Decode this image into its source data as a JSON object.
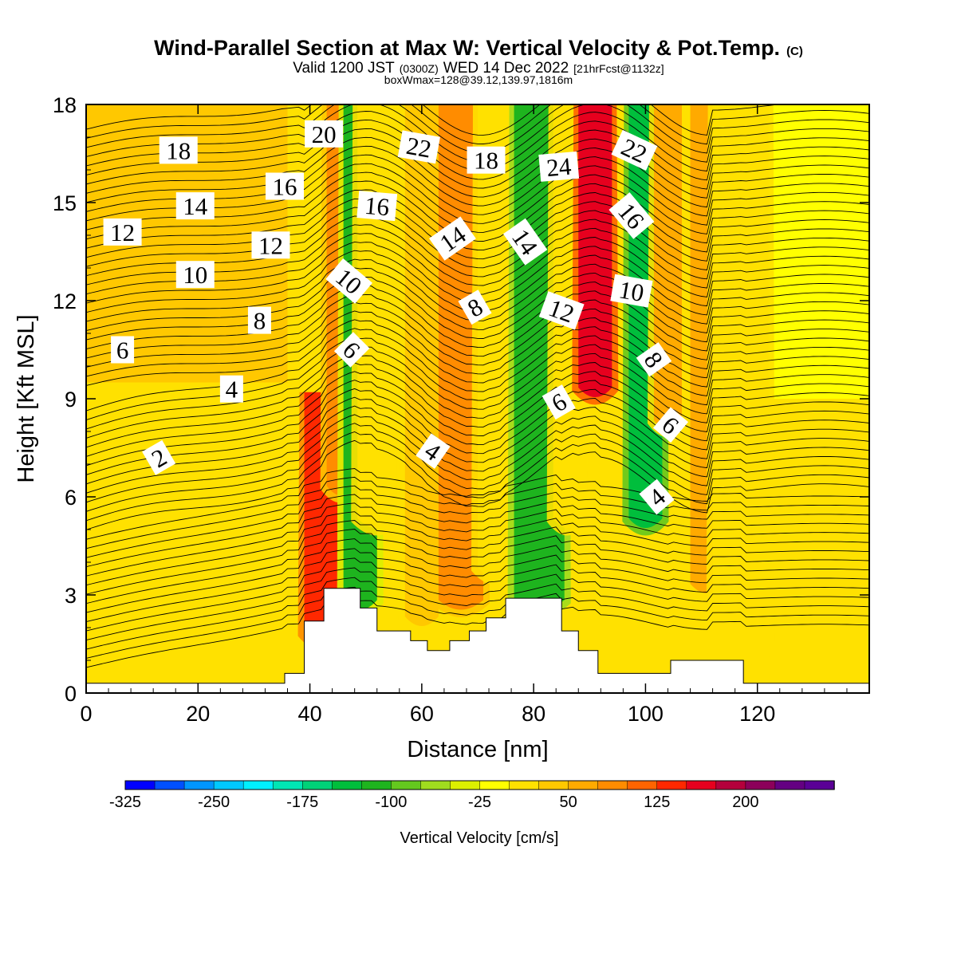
{
  "title": {
    "main": "Wind-Parallel Section at Max W: Vertical Velocity & Pot.Temp.",
    "copyright": "(C)",
    "valid_prefix": "Valid 1200 JST",
    "utc": "(0300Z)",
    "valid_date": "WED 14 Dec 2022",
    "forecast": "[21hrFcst@1132z]",
    "boxinfo": "boxWmax=128@39.12,139.97,1816m"
  },
  "chart_data": {
    "type": "heatmap",
    "xlabel": "Distance [nm]",
    "ylabel": "Height [Kft MSL]",
    "xlim": [
      0,
      140
    ],
    "ylim": [
      0,
      18
    ],
    "xticks": [
      "0",
      "20",
      "40",
      "60",
      "80",
      "100",
      "120"
    ],
    "xtick_values": [
      0,
      20,
      40,
      60,
      80,
      100,
      120
    ],
    "yticks": [
      "0",
      "3",
      "6",
      "9",
      "12",
      "15",
      "18"
    ],
    "ytick_values": [
      0,
      3,
      6,
      9,
      12,
      15,
      18
    ],
    "colorbar": {
      "title": "Vertical Velocity [cm/s]",
      "labels": [
        "-325",
        "-250",
        "-175",
        "-100",
        "-25",
        "50",
        "125",
        "200"
      ],
      "label_values": [
        -325,
        -250,
        -175,
        -100,
        -25,
        50,
        125,
        200
      ],
      "levels_min": -325,
      "level_step": 25,
      "colors": [
        "#0000ff",
        "#0050ff",
        "#0096ff",
        "#00c8ff",
        "#00f0ff",
        "#00e6b4",
        "#00d278",
        "#00be3c",
        "#1eb41e",
        "#64c81e",
        "#a0dc1e",
        "#dcf000",
        "#ffff00",
        "#ffe100",
        "#ffc800",
        "#ffaa00",
        "#ff8c00",
        "#ff6400",
        "#ff2800",
        "#e6001e",
        "#b4003c",
        "#8c005a",
        "#640082",
        "#5a0096"
      ]
    },
    "vertical_velocity_bands": [
      {
        "x": 42,
        "w": 3.0,
        "y0": 1.5,
        "y1": 9.2,
        "value": 140
      },
      {
        "x": 45.5,
        "w": 2.5,
        "y0": 6.0,
        "y1": 18,
        "value": 90
      },
      {
        "x": 49,
        "w": 3.0,
        "y0": 2.5,
        "y1": 18,
        "value": -110
      },
      {
        "x": 52,
        "w": 3.5,
        "y0": 5.0,
        "y1": 18,
        "value": 20
      },
      {
        "x": 60,
        "w": 3.0,
        "y0": 2.0,
        "y1": 18,
        "value": 35
      },
      {
        "x": 67,
        "w": 4.0,
        "y0": 2.5,
        "y1": 18,
        "value": 95
      },
      {
        "x": 73,
        "w": 3.0,
        "y0": 3.5,
        "y1": 18,
        "value": 20
      },
      {
        "x": 81,
        "w": 4.5,
        "y0": 2.5,
        "y1": 18,
        "value": -120
      },
      {
        "x": 86,
        "w": 2.5,
        "y0": 5.0,
        "y1": 18,
        "value": 20
      },
      {
        "x": 91,
        "w": 3.0,
        "y0": 9.0,
        "y1": 18,
        "value": 150
      },
      {
        "x": 100,
        "w": 3.0,
        "y0": 5.0,
        "y1": 18,
        "value": -150
      },
      {
        "x": 104,
        "w": 2.5,
        "y0": 8.0,
        "y1": 18,
        "value": 60
      },
      {
        "x": 111,
        "w": 3.0,
        "y0": 3.0,
        "y1": 18,
        "value": 60
      },
      {
        "x": 117,
        "w": 5.0,
        "y0": 1.0,
        "y1": 18,
        "value": 15
      }
    ],
    "terrain": [
      [
        35.5,
        0.6
      ],
      [
        39,
        2.2
      ],
      [
        42.5,
        3.2
      ],
      [
        49,
        2.6
      ],
      [
        52,
        1.9
      ],
      [
        58,
        1.6
      ],
      [
        61,
        1.3
      ],
      [
        65,
        1.6
      ],
      [
        68.5,
        1.9
      ],
      [
        71.5,
        2.3
      ],
      [
        75,
        2.9
      ],
      [
        85,
        1.9
      ],
      [
        88,
        1.3
      ],
      [
        91.5,
        0.6
      ],
      [
        104.5,
        1.0
      ],
      [
        117.5,
        0.3
      ]
    ],
    "theta_contour_labels": [
      {
        "text": "20",
        "x": 42.5,
        "y": 17.1,
        "angle": 0
      },
      {
        "text": "22",
        "x": 59.5,
        "y": 16.7,
        "angle": 10
      },
      {
        "text": "18",
        "x": 71.5,
        "y": 16.3,
        "angle": 0
      },
      {
        "text": "24",
        "x": 84.5,
        "y": 16.1,
        "angle": -5
      },
      {
        "text": "22",
        "x": 98,
        "y": 16.6,
        "angle": 25
      },
      {
        "text": "18",
        "x": 16.5,
        "y": 16.6,
        "angle": 0
      },
      {
        "text": "16",
        "x": 35.5,
        "y": 15.5,
        "angle": 0
      },
      {
        "text": "16",
        "x": 52,
        "y": 14.9,
        "angle": 5
      },
      {
        "text": "14",
        "x": 19.5,
        "y": 14.9,
        "angle": 0
      },
      {
        "text": "16",
        "x": 97.5,
        "y": 14.6,
        "angle": 50
      },
      {
        "text": "14",
        "x": 65.5,
        "y": 13.9,
        "angle": -35
      },
      {
        "text": "14",
        "x": 78.5,
        "y": 13.8,
        "angle": 55
      },
      {
        "text": "12",
        "x": 6.5,
        "y": 14.1,
        "angle": 0
      },
      {
        "text": "12",
        "x": 33,
        "y": 13.7,
        "angle": 0
      },
      {
        "text": "10",
        "x": 19.5,
        "y": 12.8,
        "angle": 0
      },
      {
        "text": "10",
        "x": 47,
        "y": 12.6,
        "angle": 40
      },
      {
        "text": "10",
        "x": 97.5,
        "y": 12.3,
        "angle": 10
      },
      {
        "text": "8",
        "x": 69.5,
        "y": 11.8,
        "angle": -30
      },
      {
        "text": "12",
        "x": 85,
        "y": 11.7,
        "angle": 20
      },
      {
        "text": "8",
        "x": 31,
        "y": 11.4,
        "angle": 0
      },
      {
        "text": "6",
        "x": 6.5,
        "y": 10.5,
        "angle": 0
      },
      {
        "text": "6",
        "x": 47.5,
        "y": 10.5,
        "angle": 45
      },
      {
        "text": "8",
        "x": 101.5,
        "y": 10.2,
        "angle": 55
      },
      {
        "text": "4",
        "x": 26,
        "y": 9.3,
        "angle": 0
      },
      {
        "text": "6",
        "x": 84.5,
        "y": 8.9,
        "angle": -30
      },
      {
        "text": "6",
        "x": 104.5,
        "y": 8.2,
        "angle": 40
      },
      {
        "text": "2",
        "x": 13,
        "y": 7.2,
        "angle": -30
      },
      {
        "text": "4",
        "x": 62,
        "y": 7.4,
        "angle": 35
      },
      {
        "text": "4",
        "x": 102,
        "y": 6.0,
        "angle": -40
      }
    ]
  }
}
